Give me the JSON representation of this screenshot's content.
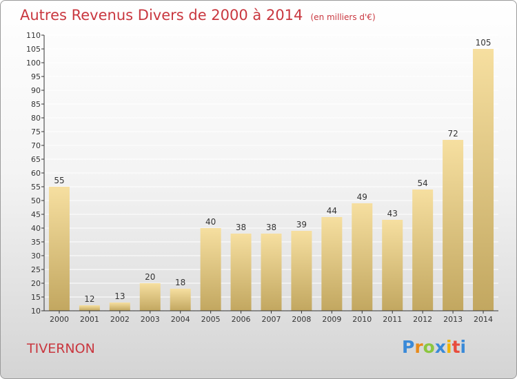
{
  "title": "Autres Revenus Divers de 2000 à 2014",
  "unit": "(en milliers d'€)",
  "location": "TIVERNON",
  "brand": {
    "letters": [
      "P",
      "r",
      "o",
      "x",
      "i",
      "t",
      "i"
    ],
    "colors": [
      "#3a8ad8",
      "#e88a1a",
      "#8cc63f",
      "#3a8ad8",
      "#f0b400",
      "#e84c3d",
      "#3a8ad8"
    ]
  },
  "colors": {
    "title": "#c9373f",
    "bar_light": "#f6dfa0",
    "bar_dark": "#c2a760",
    "axis": "#333333",
    "grid": "#ffffff"
  },
  "chart_data": {
    "type": "bar",
    "categories": [
      "2000",
      "2001",
      "2002",
      "2003",
      "2004",
      "2005",
      "2006",
      "2007",
      "2008",
      "2009",
      "2010",
      "2011",
      "2012",
      "2013",
      "2014"
    ],
    "values": [
      55,
      12,
      13,
      20,
      18,
      40,
      38,
      38,
      39,
      44,
      49,
      43,
      54,
      72,
      105
    ],
    "ylim": [
      10,
      110
    ],
    "yticks": [
      10,
      15,
      20,
      25,
      30,
      35,
      40,
      45,
      50,
      55,
      60,
      65,
      70,
      75,
      80,
      85,
      90,
      95,
      100,
      105,
      110
    ],
    "xlabel": "",
    "ylabel": "",
    "grid": true
  }
}
